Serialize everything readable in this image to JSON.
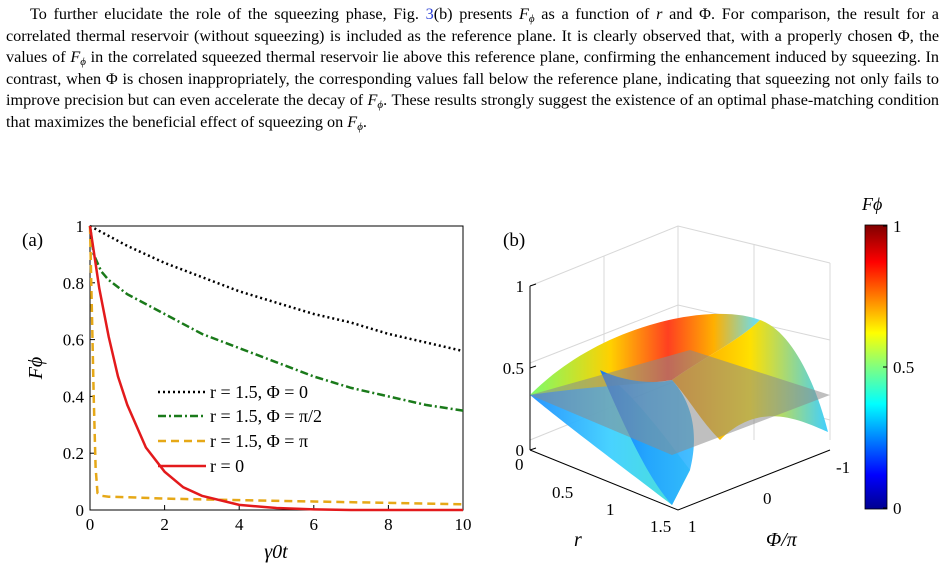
{
  "paragraph": {
    "s1_pre": "To further elucidate the role of the squeezing phase, Fig. ",
    "s1_ref": "3",
    "s1_post": "(b) presents ",
    "F": "F",
    "phi": "ϕ",
    "s1_end": " as a function of ",
    "r": "r",
    "s1_and": " and Φ. For comparison, the result for a correlated thermal reservoir (without squeezing) is included as the reference plane. It is clearly observed that, with a properly chosen Φ, the values of ",
    "s2": " in the correlated squeezed thermal reservoir lie above this reference plane, confirming the enhancement induced by squeezing. In contrast, when Φ is chosen inappropriately, the corresponding values fall below the reference plane, indicating that squeezing not only fails to improve precision but can even accelerate the decay of ",
    "s3": ". These results strongly suggest the existence of an optimal phase-matching condition that maximizes the beneficial effect of squeezing on ",
    "s4": "."
  },
  "panel_a": {
    "label": "(a)",
    "ylabel": "Fϕ",
    "xlabel": "γ0t",
    "x_ticks": [
      "0",
      "2",
      "4",
      "6",
      "8",
      "10"
    ],
    "y_ticks": [
      "0",
      "0.2",
      "0.4",
      "0.6",
      "0.8",
      "1"
    ],
    "legend": [
      "r = 1.5, Φ = 0",
      "r = 1.5, Φ = π/2",
      "r = 1.5, Φ = π",
      "r = 0"
    ]
  },
  "panel_b": {
    "label": "(b)",
    "z_ticks": [
      "0",
      "0.5",
      "1"
    ],
    "r_ticks": [
      "0",
      "0.5",
      "1",
      "1.5"
    ],
    "r_label": "r",
    "phi_ticks": [
      "1",
      "0",
      "-1"
    ],
    "phi_label": "Φ/π",
    "colorbar_title": "Fϕ",
    "colorbar_ticks": [
      "0",
      "0.5",
      "1"
    ]
  },
  "chart_data": [
    {
      "type": "line",
      "xlim": [
        0,
        10
      ],
      "ylim": [
        0,
        1
      ],
      "xlabel": "γ0t",
      "ylabel": "Fϕ",
      "legend_position": "center-left",
      "series": [
        {
          "name": "r = 1.5, Φ = 0",
          "color": "#000000",
          "style": "dotted",
          "x": [
            0,
            1,
            2,
            3,
            4,
            5,
            6,
            7,
            8,
            9,
            10
          ],
          "y": [
            1.0,
            0.93,
            0.87,
            0.82,
            0.77,
            0.73,
            0.69,
            0.66,
            0.62,
            0.59,
            0.56
          ]
        },
        {
          "name": "r = 1.5, Φ = π/2",
          "color": "#1a7a1a",
          "style": "dashdot",
          "x": [
            0,
            0.1,
            0.3,
            0.5,
            1,
            2,
            3,
            4,
            5,
            6,
            7,
            8,
            9,
            10
          ],
          "y": [
            1.0,
            0.9,
            0.84,
            0.81,
            0.76,
            0.69,
            0.62,
            0.57,
            0.52,
            0.47,
            0.43,
            0.4,
            0.37,
            0.35
          ]
        },
        {
          "name": "r = 1.5, Φ = π",
          "color": "#e6a817",
          "style": "dashed",
          "x": [
            0,
            0.05,
            0.1,
            0.15,
            0.2,
            0.3,
            0.5,
            1,
            2,
            4,
            6,
            8,
            10
          ],
          "y": [
            1.0,
            0.7,
            0.4,
            0.15,
            0.06,
            0.05,
            0.047,
            0.045,
            0.04,
            0.035,
            0.03,
            0.025,
            0.02
          ]
        },
        {
          "name": "r = 0",
          "color": "#e31a1c",
          "style": "solid",
          "x": [
            0,
            0.25,
            0.5,
            0.75,
            1,
            1.5,
            2,
            2.5,
            3,
            4,
            5,
            6,
            7,
            8,
            9,
            10
          ],
          "y": [
            1.0,
            0.78,
            0.61,
            0.47,
            0.37,
            0.22,
            0.135,
            0.08,
            0.05,
            0.018,
            0.007,
            0.002,
            0,
            0,
            0,
            0
          ]
        }
      ]
    },
    {
      "type": "heatmap",
      "zlim": [
        0,
        1
      ],
      "xlabel": "r",
      "ylabel": "Φ/π",
      "colorbar_title": "Fϕ",
      "colorbar_range": [
        0,
        1
      ],
      "r": [
        0,
        0.25,
        0.5,
        0.75,
        1.0,
        1.25,
        1.5
      ],
      "phi": [
        1.0,
        0.5,
        0.0,
        -0.5,
        -1.0
      ],
      "z": [
        [
          0.3,
          0.3,
          0.3,
          0.3,
          0.3
        ],
        [
          0.26,
          0.4,
          0.52,
          0.4,
          0.26
        ],
        [
          0.2,
          0.52,
          0.7,
          0.52,
          0.2
        ],
        [
          0.16,
          0.6,
          0.78,
          0.6,
          0.16
        ],
        [
          0.13,
          0.65,
          0.82,
          0.65,
          0.13
        ],
        [
          0.12,
          0.67,
          0.84,
          0.67,
          0.12
        ],
        [
          0.12,
          0.68,
          0.85,
          0.68,
          0.12
        ]
      ],
      "reference_plane": 0.3
    }
  ]
}
